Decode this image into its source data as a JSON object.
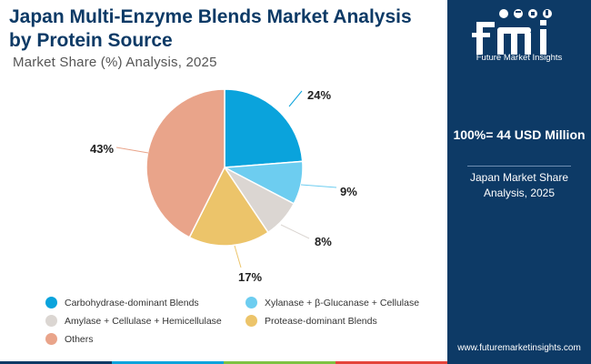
{
  "header": {
    "title": "Japan Multi-Enzyme Blends Market Analysis by Protein Source",
    "subtitle": "Market Share (%) Analysis, 2025"
  },
  "chart_data": {
    "type": "pie",
    "title": "Japan Multi-Enzyme Blends Market Analysis by Protein Source",
    "subtitle": "Market Share (%) Analysis, 2025",
    "start_angle_deg": 0,
    "direction": "clockwise",
    "slices": [
      {
        "label": "Carbohydrase-dominant Blends",
        "value": 24,
        "display": "24%",
        "color": "#0aa3dc"
      },
      {
        "label": "Xylanase + β-Glucanase + Cellulase",
        "value": 9,
        "display": "9%",
        "color": "#6dcdf0"
      },
      {
        "label": "Amylase + Cellulase + Hemicellulase",
        "value": 8,
        "display": "8%",
        "color": "#dbd6d2"
      },
      {
        "label": "Protease-dominant Blends",
        "value": 17,
        "display": "17%",
        "color": "#ecc46a"
      },
      {
        "label": "Others",
        "value": 43,
        "display": "43%",
        "color": "#e9a48a"
      }
    ],
    "legend_position": "bottom"
  },
  "side_panel": {
    "brand": "Future Market Insights",
    "total": "100%= 44 USD Million",
    "market_share": "Japan Market Share Analysis, 2025",
    "website": "www.futuremarketinsights.com"
  },
  "colors": {
    "panel": "#0d3a66",
    "title": "#0d3a66",
    "strip": [
      "#0d3a66",
      "#0aa3dc",
      "#7ec242",
      "#e4453b"
    ]
  }
}
